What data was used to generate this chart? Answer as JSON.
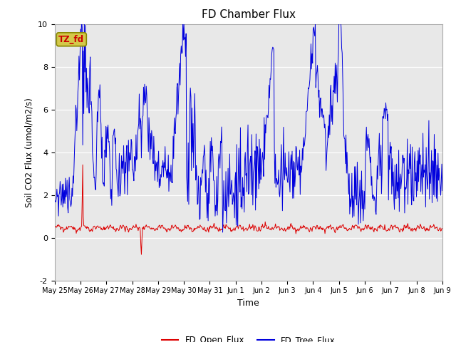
{
  "title": "FD Chamber Flux",
  "xlabel": "Time",
  "ylabel": "Soil CO2 Flux (umol/m2/s)",
  "ylim": [
    -2,
    10
  ],
  "annotation_text": "TZ_fd",
  "annotation_color": "#cc0000",
  "annotation_bg": "#d4c84a",
  "legend": [
    "FD_Open_Flux",
    "FD_Tree_Flux"
  ],
  "red_color": "#dd0000",
  "blue_color": "#0000dd",
  "bg_color": "#e8e8e8",
  "xtick_labels": [
    "May 25",
    "May 26",
    "May 27",
    "May 28",
    "May 29",
    "May 30",
    "May 31",
    "Jun 1",
    "Jun 2",
    "Jun 3",
    "Jun 4",
    "Jun 5",
    "Jun 6",
    "Jun 7",
    "Jun 8",
    "Jun 9"
  ],
  "ytick_labels": [
    "-2",
    "0",
    "2",
    "4",
    "6",
    "8",
    "10"
  ],
  "ytick_values": [
    -2,
    0,
    2,
    4,
    6,
    8,
    10
  ]
}
